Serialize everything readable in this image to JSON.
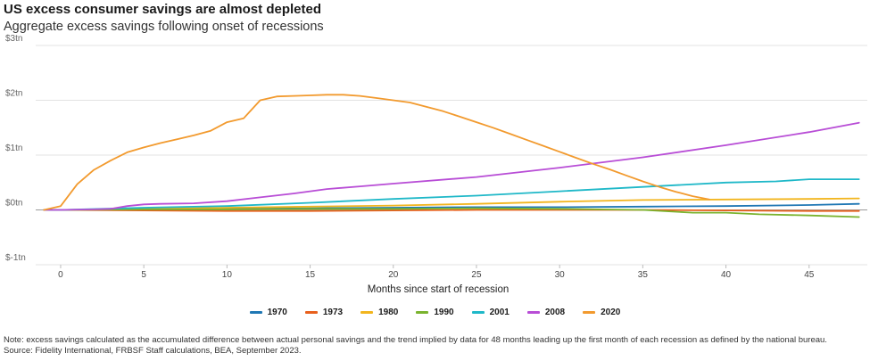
{
  "title": "US excess consumer savings are almost depleted",
  "subtitle": "Aggregate excess savings following onset of recessions",
  "note": "Note: excess savings calculated as the accumulated difference between actual personal savings and the trend implied by data for 48 months leading up the first month of each recession as defined by the national bureau.",
  "source": "Source: Fidelity International, FRBSF Staff calculations, BEA, September 2023.",
  "chart_data": {
    "type": "line",
    "xlabel": "Months since start of recession",
    "ylabel": "",
    "xlim": [
      -1.5,
      48.5
    ],
    "ylim": [
      -1,
      3
    ],
    "x_ticks": [
      0,
      5,
      10,
      15,
      20,
      25,
      30,
      35,
      40,
      45
    ],
    "y_ticks": [
      {
        "value": 3,
        "label": "$3tn"
      },
      {
        "value": 2,
        "label": "$2tn"
      },
      {
        "value": 1,
        "label": "$1tn"
      },
      {
        "value": 0,
        "label": "$0tn"
      },
      {
        "value": -1,
        "label": "$-1tn"
      }
    ],
    "grid": true,
    "legend_position": "bottom",
    "series": [
      {
        "name": "1970",
        "color": "#1f77b4",
        "points": [
          [
            -1,
            0
          ],
          [
            0,
            0
          ],
          [
            5,
            0.01
          ],
          [
            10,
            0.02
          ],
          [
            15,
            0.03
          ],
          [
            20,
            0.04
          ],
          [
            25,
            0.05
          ],
          [
            30,
            0.05
          ],
          [
            35,
            0.06
          ],
          [
            40,
            0.07
          ],
          [
            45,
            0.09
          ],
          [
            48,
            0.11
          ]
        ]
      },
      {
        "name": "1973",
        "color": "#e8601c",
        "points": [
          [
            -1,
            0
          ],
          [
            0,
            0
          ],
          [
            5,
            -0.01
          ],
          [
            10,
            -0.02
          ],
          [
            15,
            -0.02
          ],
          [
            20,
            -0.01
          ],
          [
            25,
            0
          ],
          [
            30,
            0
          ],
          [
            35,
            0
          ],
          [
            40,
            -0.01
          ],
          [
            45,
            -0.02
          ],
          [
            48,
            -0.02
          ]
        ]
      },
      {
        "name": "1980",
        "color": "#f2b51d",
        "points": [
          [
            -1,
            0
          ],
          [
            0,
            0
          ],
          [
            5,
            0.02
          ],
          [
            10,
            0.04
          ],
          [
            15,
            0.06
          ],
          [
            20,
            0.08
          ],
          [
            25,
            0.11
          ],
          [
            30,
            0.15
          ],
          [
            35,
            0.18
          ],
          [
            40,
            0.19
          ],
          [
            45,
            0.2
          ],
          [
            48,
            0.21
          ]
        ]
      },
      {
        "name": "1990",
        "color": "#7ab32e",
        "points": [
          [
            -1,
            0
          ],
          [
            0,
            0
          ],
          [
            5,
            0.01
          ],
          [
            10,
            0.01
          ],
          [
            15,
            0.02
          ],
          [
            20,
            0.02
          ],
          [
            25,
            0.03
          ],
          [
            30,
            0.02
          ],
          [
            35,
            0
          ],
          [
            38,
            -0.05
          ],
          [
            40,
            -0.05
          ],
          [
            42,
            -0.08
          ],
          [
            45,
            -0.1
          ],
          [
            48,
            -0.13
          ]
        ]
      },
      {
        "name": "2001",
        "color": "#1fb8c8",
        "points": [
          [
            -1,
            0
          ],
          [
            0,
            0
          ],
          [
            5,
            0.04
          ],
          [
            10,
            0.07
          ],
          [
            15,
            0.13
          ],
          [
            20,
            0.2
          ],
          [
            25,
            0.26
          ],
          [
            30,
            0.34
          ],
          [
            35,
            0.42
          ],
          [
            40,
            0.5
          ],
          [
            43,
            0.52
          ],
          [
            45,
            0.56
          ],
          [
            48,
            0.56
          ]
        ]
      },
      {
        "name": "2008",
        "color": "#b84dd6",
        "points": [
          [
            -1,
            0
          ],
          [
            0,
            0
          ],
          [
            2,
            0.01
          ],
          [
            3,
            0.02
          ],
          [
            4,
            0.07
          ],
          [
            5,
            0.1
          ],
          [
            6,
            0.11
          ],
          [
            8,
            0.12
          ],
          [
            10,
            0.16
          ],
          [
            12,
            0.23
          ],
          [
            14,
            0.3
          ],
          [
            16,
            0.38
          ],
          [
            18,
            0.43
          ],
          [
            20,
            0.48
          ],
          [
            25,
            0.6
          ],
          [
            30,
            0.77
          ],
          [
            35,
            0.96
          ],
          [
            40,
            1.18
          ],
          [
            45,
            1.42
          ],
          [
            48,
            1.59
          ]
        ]
      },
      {
        "name": "2020",
        "color": "#f29a2e",
        "points": [
          [
            -1,
            0
          ],
          [
            0,
            0.07
          ],
          [
            1,
            0.47
          ],
          [
            2,
            0.73
          ],
          [
            3,
            0.9
          ],
          [
            4,
            1.05
          ],
          [
            5,
            1.14
          ],
          [
            6,
            1.22
          ],
          [
            7,
            1.29
          ],
          [
            8,
            1.36
          ],
          [
            9,
            1.44
          ],
          [
            10,
            1.6
          ],
          [
            11,
            1.67
          ],
          [
            12,
            2.0
          ],
          [
            13,
            2.07
          ],
          [
            14,
            2.08
          ],
          [
            15,
            2.09
          ],
          [
            16,
            2.1
          ],
          [
            17,
            2.1
          ],
          [
            18,
            2.08
          ],
          [
            19,
            2.04
          ],
          [
            20,
            2.0
          ],
          [
            21,
            1.96
          ],
          [
            22,
            1.88
          ],
          [
            23,
            1.8
          ],
          [
            24,
            1.7
          ],
          [
            25,
            1.6
          ],
          [
            26,
            1.5
          ],
          [
            27,
            1.39
          ],
          [
            28,
            1.28
          ],
          [
            29,
            1.17
          ],
          [
            30,
            1.06
          ],
          [
            31,
            0.95
          ],
          [
            32,
            0.84
          ],
          [
            33,
            0.74
          ],
          [
            34,
            0.63
          ],
          [
            35,
            0.52
          ],
          [
            36,
            0.42
          ],
          [
            37,
            0.33
          ],
          [
            38,
            0.25
          ],
          [
            39,
            0.19
          ]
        ]
      }
    ]
  }
}
